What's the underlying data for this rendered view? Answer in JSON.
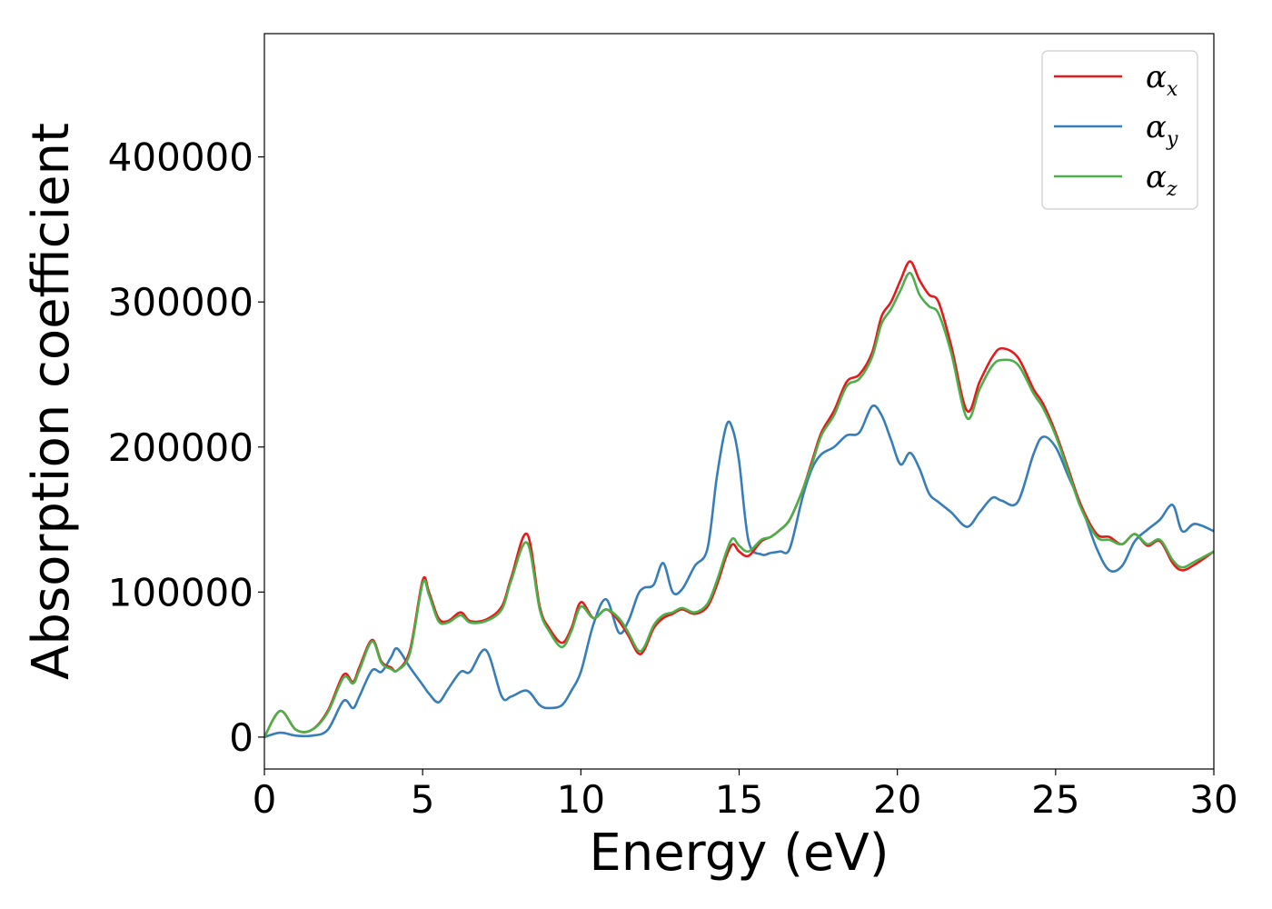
{
  "chart_data": {
    "type": "line",
    "xlabel": "Energy (eV)",
    "ylabel": "Absorption coefficient",
    "xlim": [
      0,
      30
    ],
    "ylim": [
      -22000,
      485000
    ],
    "xticks": [
      0,
      5,
      10,
      15,
      20,
      25,
      30
    ],
    "yticks": [
      0,
      100000,
      200000,
      300000,
      400000
    ],
    "grid": false,
    "legend_position": "top-right",
    "x": [
      0,
      0.5,
      1,
      1.5,
      2,
      2.5,
      2.8,
      3,
      3.4,
      3.7,
      4,
      4.2,
      4.6,
      5.0,
      5.2,
      5.5,
      5.8,
      6.2,
      6.5,
      7,
      7.5,
      7.8,
      8.3,
      8.7,
      9,
      9.4,
      9.7,
      10,
      10.4,
      10.8,
      11.2,
      11.5,
      11.8,
      12,
      12.3,
      12.6,
      12.9,
      13.2,
      13.6,
      14,
      14.3,
      14.6,
      14.8,
      15,
      15.3,
      15.7,
      16,
      16.3,
      16.6,
      17,
      17.3,
      17.6,
      18,
      18.4,
      18.8,
      19.2,
      19.5,
      19.8,
      20.1,
      20.4,
      20.7,
      21.0,
      21.3,
      21.7,
      22.2,
      22.6,
      23,
      23.3,
      23.8,
      24.3,
      24.6,
      25,
      25.4,
      25.8,
      26.3,
      26.7,
      27.1,
      27.5,
      27.9,
      28.3,
      28.7,
      29.0,
      29.4,
      30
    ],
    "series": [
      {
        "name": "α_x",
        "label_main": "α",
        "label_sub": "x",
        "color": "#e41a1c",
        "values": [
          0,
          18000,
          5000,
          5000,
          18000,
          43000,
          38000,
          48000,
          67000,
          52000,
          48000,
          46000,
          60000,
          108000,
          100000,
          82000,
          80000,
          86000,
          80000,
          81000,
          90000,
          110000,
          140000,
          90000,
          75000,
          65000,
          75000,
          93000,
          82000,
          88000,
          80000,
          70000,
          58000,
          60000,
          75000,
          82000,
          85000,
          88000,
          85000,
          90000,
          105000,
          125000,
          133000,
          128000,
          125000,
          135000,
          138000,
          143000,
          150000,
          170000,
          190000,
          210000,
          225000,
          245000,
          250000,
          265000,
          290000,
          300000,
          315000,
          328000,
          315000,
          305000,
          300000,
          270000,
          225000,
          245000,
          262000,
          268000,
          262000,
          240000,
          230000,
          210000,
          185000,
          160000,
          140000,
          138000,
          133000,
          140000,
          132000,
          135000,
          120000,
          115000,
          119000,
          128000
        ]
      },
      {
        "name": "α_y",
        "label_main": "α",
        "label_sub": "y",
        "color": "#377eb8",
        "values": [
          0,
          3000,
          1000,
          1000,
          5000,
          25000,
          20000,
          28000,
          46000,
          45000,
          55000,
          61000,
          48000,
          36000,
          30000,
          24000,
          33000,
          45000,
          45000,
          60000,
          28000,
          28000,
          32000,
          22000,
          20000,
          22000,
          32000,
          45000,
          78000,
          95000,
          72000,
          80000,
          98000,
          103000,
          105000,
          120000,
          100000,
          102000,
          118000,
          130000,
          180000,
          215000,
          212000,
          190000,
          135000,
          126000,
          127000,
          128000,
          130000,
          165000,
          185000,
          195000,
          200000,
          208000,
          210000,
          228000,
          222000,
          205000,
          188000,
          196000,
          185000,
          168000,
          162000,
          155000,
          145000,
          155000,
          165000,
          163000,
          162000,
          195000,
          207000,
          200000,
          180000,
          160000,
          130000,
          115000,
          118000,
          135000,
          143000,
          150000,
          160000,
          142000,
          147000,
          142000
        ]
      },
      {
        "name": "α_z",
        "label_main": "α",
        "label_sub": "z",
        "color": "#4daf4a",
        "values": [
          0,
          18000,
          5000,
          5000,
          17000,
          41000,
          37000,
          46000,
          66000,
          51000,
          47000,
          46000,
          58000,
          106000,
          98000,
          80000,
          79000,
          84000,
          79000,
          80000,
          88000,
          108000,
          134000,
          88000,
          73000,
          62000,
          73000,
          90000,
          82000,
          88000,
          82000,
          72000,
          60000,
          62000,
          77000,
          84000,
          86000,
          89000,
          86000,
          92000,
          108000,
          128000,
          137000,
          132000,
          128000,
          136000,
          138000,
          143000,
          150000,
          170000,
          188000,
          208000,
          222000,
          242000,
          247000,
          262000,
          285000,
          295000,
          308000,
          320000,
          305000,
          297000,
          292000,
          265000,
          220000,
          240000,
          256000,
          260000,
          257000,
          237000,
          227000,
          208000,
          183000,
          158000,
          138000,
          136000,
          133000,
          140000,
          133000,
          136000,
          122000,
          117000,
          121000,
          128000
        ]
      }
    ]
  }
}
